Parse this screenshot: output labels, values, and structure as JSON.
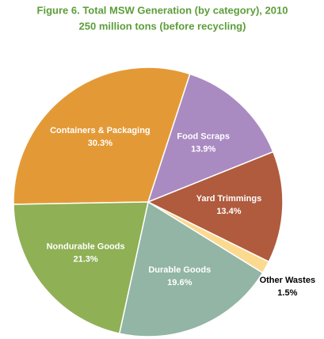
{
  "chart_data": {
    "type": "pie",
    "title": "Figure 6. Total MSW Generation (by category), 2010",
    "subtitle": "250 million tons (before recycling)",
    "categories": [
      "Containers & Packaging",
      "Food Scraps",
      "Yard Trimmings",
      "Other Wastes",
      "Durable Goods",
      "Nondurable Goods"
    ],
    "values": [
      30.3,
      13.9,
      13.4,
      1.5,
      19.6,
      21.3
    ],
    "value_labels": [
      "30.3%",
      "13.9%",
      "13.4%",
      "1.5%",
      "19.6%",
      "21.3%"
    ],
    "colors": [
      "#e39a36",
      "#a98bc2",
      "#b05b3d",
      "#fbd98f",
      "#92b5a5",
      "#8fb055"
    ]
  }
}
